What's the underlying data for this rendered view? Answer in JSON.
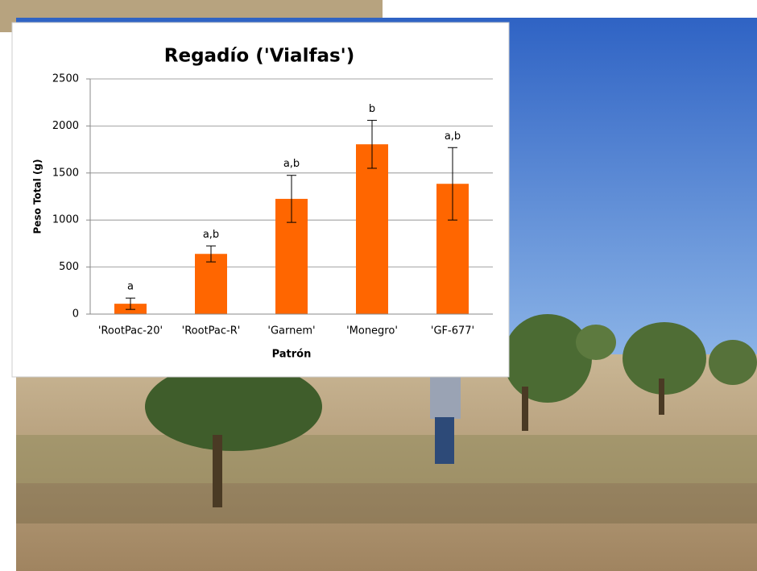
{
  "chart_data": {
    "type": "bar",
    "title": "Regadío ('Vialfas')",
    "x_label": "Patrón",
    "y_label": "Peso Total (g)",
    "categories": [
      "'RootPac-20'",
      "'RootPac-R'",
      "'Garnem'",
      "'Monegro'",
      "'GF-677'"
    ],
    "values": [
      110,
      640,
      1225,
      1805,
      1385
    ],
    "errors": [
      60,
      85,
      250,
      255,
      385
    ],
    "letters": [
      "a",
      "a,b",
      "a,b",
      "b",
      "a,b"
    ],
    "color": "#ff6600",
    "ylim": [
      0,
      2500
    ],
    "yticks": [
      0,
      500,
      1000,
      1500,
      2000,
      2500
    ],
    "grid": true
  }
}
